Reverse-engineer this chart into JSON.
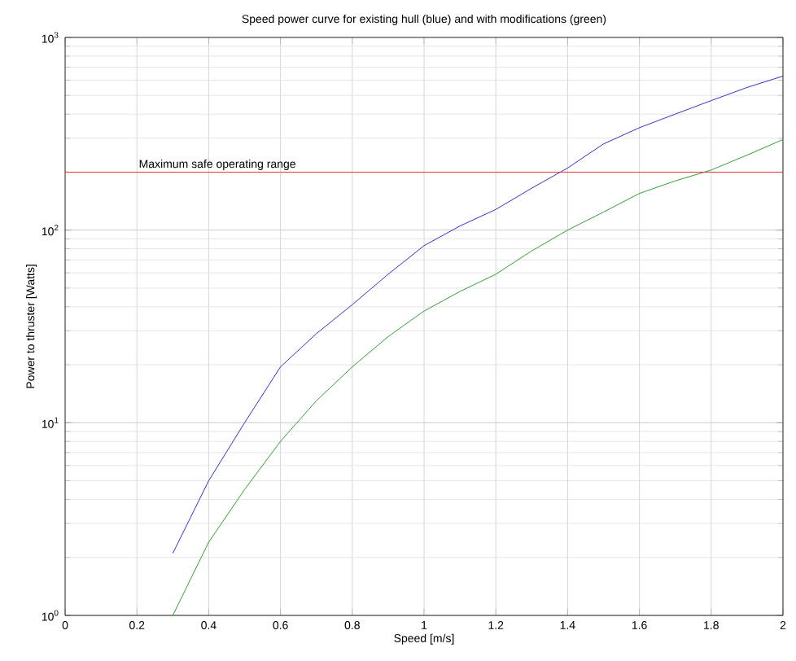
{
  "chart_data": {
    "type": "line",
    "title": "Speed power curve for existing hull (blue) and with modifications (green)",
    "xlabel": "Speed [m/s]",
    "ylabel": "Power to thruster [Watts]",
    "x": [
      0.3,
      0.4,
      0.5,
      0.6,
      0.7,
      0.8,
      0.9,
      1.0,
      1.1,
      1.2,
      1.3,
      1.4,
      1.5,
      1.6,
      1.7,
      1.8,
      1.9,
      2.0
    ],
    "series": [
      {
        "color": "#3030d0",
        "values": [
          2.1,
          5.0,
          10,
          19.5,
          29,
          41,
          59,
          83,
          105,
          128,
          165,
          210,
          280,
          340,
          400,
          470,
          550,
          630
        ]
      },
      {
        "color": "#30a030",
        "values": [
          1.0,
          2.4,
          4.5,
          8,
          13,
          19.5,
          28,
          38,
          48,
          59,
          78,
          100,
          124,
          155,
          180,
          205,
          245,
          295
        ]
      }
    ],
    "xlim": [
      0,
      2
    ],
    "xticks": [
      0,
      0.2,
      0.4,
      0.6,
      0.8,
      1,
      1.2,
      1.4,
      1.6,
      1.8,
      2
    ],
    "ylim": [
      1,
      1000
    ],
    "yticks": [
      {
        "value": 1,
        "label": "10$^{0}$"
      },
      {
        "value": 10,
        "label": "10$^{1}$"
      },
      {
        "value": 100,
        "label": "10$^{2}$"
      },
      {
        "value": 1000,
        "label": "10$^{3}$"
      }
    ],
    "log": "y",
    "grid": true,
    "ref_lines": [
      {
        "axis": "y",
        "value": 200,
        "label": "Maximum safe operating range",
        "color": "#e03030"
      }
    ]
  }
}
